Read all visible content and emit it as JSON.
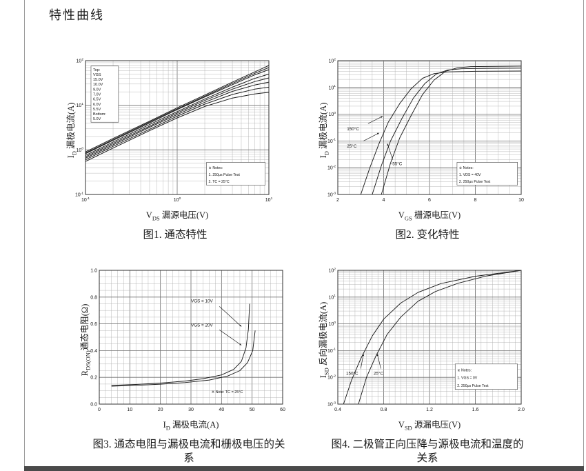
{
  "page": {
    "title": "特性曲线"
  },
  "figures": [
    {
      "caption": "图1. 通态特性",
      "x_label": {
        "sym": "V",
        "sub": "DS",
        "rest": " 漏源电压(V)"
      },
      "y_label": {
        "sym": "I",
        "sub": "D",
        "rest": " 漏极电流(A)"
      }
    },
    {
      "caption": "图2. 变化特性",
      "x_label": {
        "sym": "V",
        "sub": "GS",
        "rest": " 栅源电压(V)"
      },
      "y_label": {
        "sym": "I",
        "sub": "D",
        "rest": " 漏极电流(A)"
      }
    },
    {
      "caption": "图3. 通态电阻与漏极电流和栅极电压的关系",
      "x_label": {
        "sym": "I",
        "sub": "D",
        "rest": " 漏极电流(A)"
      },
      "y_label": {
        "sym": "R",
        "sub": "DS(ON)",
        "rest": "通态电阻(Ω)"
      }
    },
    {
      "caption": "图4. 二极管正向压降与源极电流和温度的关系",
      "x_label": {
        "sym": "V",
        "sub": "SD",
        "rest": " 源漏电压(V)"
      },
      "y_label": {
        "sym": "I",
        "sub": "SD",
        "rest": " 反向漏极电流(A)"
      }
    }
  ],
  "chart_data": [
    {
      "type": "line",
      "title": "图1. 通态特性",
      "xlabel": "VDS 漏源电压(V)",
      "ylabel": "ID 漏极电流(A)",
      "x": {
        "scale": "log",
        "min": 0.1,
        "max": 10
      },
      "y": {
        "scale": "log",
        "min": 0.1,
        "max": 100
      },
      "lw": 1.0,
      "series": [
        {
          "name": "VGS=15.0V",
          "points": [
            [
              0.1,
              0.9
            ],
            [
              0.2,
              1.8
            ],
            [
              0.5,
              4.4
            ],
            [
              1,
              8.8
            ],
            [
              2,
              17
            ],
            [
              4,
              33
            ],
            [
              7,
              56
            ],
            [
              10,
              78
            ]
          ]
        },
        {
          "name": "VGS=10.0V",
          "points": [
            [
              0.1,
              0.85
            ],
            [
              0.2,
              1.7
            ],
            [
              0.5,
              4.2
            ],
            [
              1,
              8.3
            ],
            [
              2,
              16
            ],
            [
              4,
              31
            ],
            [
              7,
              52
            ],
            [
              10,
              70
            ]
          ]
        },
        {
          "name": "VGS=9.0V",
          "points": [
            [
              0.1,
              0.82
            ],
            [
              0.2,
              1.63
            ],
            [
              0.5,
              4.0
            ],
            [
              1,
              8.0
            ],
            [
              2,
              15.3
            ],
            [
              4,
              29
            ],
            [
              7,
              48
            ],
            [
              10,
              63
            ]
          ]
        },
        {
          "name": "VGS=7.0V",
          "points": [
            [
              0.1,
              0.75
            ],
            [
              0.2,
              1.5
            ],
            [
              0.5,
              3.7
            ],
            [
              1,
              7.2
            ],
            [
              2,
              13.8
            ],
            [
              4,
              25.5
            ],
            [
              7,
              40
            ],
            [
              10,
              50
            ]
          ]
        },
        {
          "name": "VGS=6.5V",
          "points": [
            [
              0.1,
              0.7
            ],
            [
              0.2,
              1.4
            ],
            [
              0.5,
              3.4
            ],
            [
              1,
              6.7
            ],
            [
              2,
              12.8
            ],
            [
              4,
              23
            ],
            [
              7,
              34
            ],
            [
              10,
              41
            ]
          ]
        },
        {
          "name": "VGS=6.0V",
          "points": [
            [
              0.1,
              0.65
            ],
            [
              0.2,
              1.3
            ],
            [
              0.5,
              3.2
            ],
            [
              1,
              6.2
            ],
            [
              2,
              11.7
            ],
            [
              4,
              20.5
            ],
            [
              7,
              28.5
            ],
            [
              10,
              33
            ]
          ]
        },
        {
          "name": "VGS=5.5V",
          "points": [
            [
              0.1,
              0.6
            ],
            [
              0.2,
              1.2
            ],
            [
              0.5,
              2.9
            ],
            [
              1,
              5.7
            ],
            [
              2,
              10.6
            ],
            [
              4,
              17.5
            ],
            [
              7,
              23
            ],
            [
              10,
              25.5
            ]
          ]
        },
        {
          "name": "VGS=5.0V",
          "points": [
            [
              0.1,
              0.55
            ],
            [
              0.2,
              1.1
            ],
            [
              0.5,
              2.7
            ],
            [
              1,
              5.2
            ],
            [
              2,
              9.4
            ],
            [
              4,
              14.5
            ],
            [
              7,
              18
            ],
            [
              10,
              19.5
            ]
          ]
        }
      ],
      "boxes": [
        {
          "lines": [
            "Top:",
            "VGS",
            "15.0V",
            "10.0V",
            "9.0V",
            "7.0V",
            "6.5V",
            "6.0V",
            "5.5V",
            "Bottom:",
            "5.0V"
          ],
          "at": [
            0.03,
            0.04
          ],
          "w": 0.15,
          "h": 0.42,
          "border": true,
          "fs": 5.5
        },
        {
          "lines": [
            "※ Notes:",
            "1. 250μs Pulse Test",
            "2. TC = 25°C"
          ],
          "at": [
            0.66,
            0.76
          ],
          "w": 0.32,
          "h": 0.17,
          "border": true,
          "fs": 5.2
        }
      ],
      "annotations": []
    },
    {
      "type": "line",
      "title": "图2. 变化特性",
      "xlabel": "VGS 栅源电压(V)",
      "ylabel": "ID 漏极电流(A)",
      "x": {
        "scale": "linear",
        "min": 2,
        "max": 10,
        "ticks": [
          2,
          4,
          6,
          8,
          10
        ],
        "labels": [
          "2",
          "4",
          "6",
          "8",
          "10"
        ],
        "minor": 0.5
      },
      "y": {
        "scale": "log",
        "min": 0.001,
        "max": 100
      },
      "series": [
        {
          "name": "150°C",
          "points": [
            [
              3.0,
              0.001
            ],
            [
              3.4,
              0.01
            ],
            [
              3.8,
              0.08
            ],
            [
              4.2,
              0.5
            ],
            [
              4.7,
              2.5
            ],
            [
              5.2,
              9
            ],
            [
              5.7,
              22
            ],
            [
              6.2,
              33
            ],
            [
              6.8,
              38
            ],
            [
              8,
              40
            ],
            [
              10,
              41
            ]
          ]
        },
        {
          "name": "25°C",
          "points": [
            [
              3.5,
              0.001
            ],
            [
              3.9,
              0.012
            ],
            [
              4.3,
              0.1
            ],
            [
              4.8,
              0.7
            ],
            [
              5.3,
              4
            ],
            [
              5.8,
              14
            ],
            [
              6.3,
              32
            ],
            [
              6.8,
              45
            ],
            [
              7.4,
              50
            ],
            [
              8.5,
              52
            ],
            [
              10,
              53
            ]
          ]
        },
        {
          "name": "-55°C",
          "points": [
            [
              3.9,
              0.001
            ],
            [
              4.3,
              0.015
            ],
            [
              4.7,
              0.13
            ],
            [
              5.2,
              0.9
            ],
            [
              5.7,
              5.5
            ],
            [
              6.2,
              19
            ],
            [
              6.7,
              40
            ],
            [
              7.2,
              54
            ],
            [
              7.8,
              60
            ],
            [
              10,
              63
            ]
          ]
        }
      ],
      "boxes": [
        {
          "lines": [
            "※ Notes:",
            "1. VDS = 40V",
            "2. 250μs Pulse Test"
          ],
          "at": [
            0.65,
            0.76
          ],
          "w": 0.33,
          "h": 0.17,
          "border": true,
          "fs": 5.2
        }
      ],
      "annotations": [
        {
          "text": "150°C",
          "at": [
            0.05,
            0.52
          ],
          "arrow": {
            "from": [
              0.165,
              0.47
            ],
            "to": [
              0.245,
              0.415
            ]
          }
        },
        {
          "text": "25°C",
          "at": [
            0.05,
            0.65
          ],
          "arrow": {
            "from": [
              0.14,
              0.6
            ],
            "to": [
              0.225,
              0.54
            ]
          }
        },
        {
          "text": "-55°C",
          "at": [
            0.29,
            0.78
          ],
          "arrow": {
            "from": [
              0.3,
              0.74
            ],
            "to": [
              0.27,
              0.62
            ]
          }
        }
      ]
    },
    {
      "type": "line",
      "title": "图3. 通态电阻与漏极电流和栅极电压的关系",
      "xlabel": "ID 漏极电流(A)",
      "ylabel": "RDS(ON)通态电阻(Ω)",
      "x": {
        "scale": "linear",
        "min": 0,
        "max": 60,
        "ticks": [
          0,
          10,
          20,
          30,
          40,
          50,
          60
        ],
        "labels": [
          "0",
          "10",
          "20",
          "30",
          "40",
          "50",
          "60"
        ],
        "minor": 2
      },
      "y": {
        "scale": "linear",
        "min": 0,
        "max": 1.0,
        "ticks": [
          0,
          0.2,
          0.4,
          0.6,
          0.8,
          1.0
        ],
        "labels": [
          "0.0",
          "0.2",
          "0.4",
          "0.6",
          "0.8",
          "1.0"
        ],
        "minor": 0.05
      },
      "series": [
        {
          "name": "VGS = 10V",
          "points": [
            [
              4,
              0.14
            ],
            [
              12,
              0.147
            ],
            [
              20,
              0.157
            ],
            [
              28,
              0.172
            ],
            [
              34,
              0.19
            ],
            [
              40,
              0.218
            ],
            [
              44,
              0.26
            ],
            [
              46.5,
              0.32
            ],
            [
              48,
              0.42
            ],
            [
              48.8,
              0.56
            ],
            [
              49.2,
              0.75
            ]
          ]
        },
        {
          "name": "VGS = 20V",
          "points": [
            [
              4,
              0.134
            ],
            [
              12,
              0.14
            ],
            [
              20,
              0.149
            ],
            [
              28,
              0.161
            ],
            [
              36,
              0.18
            ],
            [
              42,
              0.21
            ],
            [
              46,
              0.25
            ],
            [
              48.5,
              0.31
            ],
            [
              50.2,
              0.4
            ],
            [
              51,
              0.55
            ]
          ]
        }
      ],
      "boxes": [
        {
          "lines": [
            "※ Note: TC = 25°C"
          ],
          "at": [
            0.6,
            0.84
          ],
          "w": 0.38,
          "h": 0.1,
          "border": false,
          "fs": 5.4
        }
      ],
      "annotations": [
        {
          "text": "VGS = 10V",
          "at": [
            0.5,
            0.24
          ],
          "arrow": {
            "from": [
              0.655,
              0.27
            ],
            "to": [
              0.775,
              0.42
            ]
          }
        },
        {
          "text": "VGS = 20V",
          "at": [
            0.5,
            0.42
          ],
          "arrow": {
            "from": [
              0.655,
              0.445
            ],
            "to": [
              0.775,
              0.56
            ]
          }
        }
      ]
    },
    {
      "type": "line",
      "title": "图4. 二极管正向压降与源极电流和温度的关系",
      "xlabel": "VSD 源漏电压(V)",
      "ylabel": "ISD 反向漏极电流(A)",
      "x": {
        "scale": "linear",
        "min": 0.4,
        "max": 2.0,
        "ticks": [
          0.4,
          0.8,
          1.2,
          1.6,
          2.0
        ],
        "labels": [
          "0.4",
          "0.8",
          "1.2",
          "1.6",
          "2.0"
        ],
        "minor": 0.05
      },
      "y": {
        "scale": "log",
        "min": 0.001,
        "max": 100
      },
      "series": [
        {
          "name": "150°C",
          "points": [
            [
              0.45,
              0.001
            ],
            [
              0.52,
              0.008
            ],
            [
              0.6,
              0.05
            ],
            [
              0.7,
              0.35
            ],
            [
              0.8,
              1.5
            ],
            [
              0.95,
              6
            ],
            [
              1.1,
              15
            ],
            [
              1.3,
              32
            ],
            [
              1.6,
              60
            ],
            [
              2.0,
              100
            ]
          ]
        },
        {
          "name": "25°C",
          "points": [
            [
              0.58,
              0.001
            ],
            [
              0.65,
              0.01
            ],
            [
              0.73,
              0.06
            ],
            [
              0.83,
              0.4
            ],
            [
              0.95,
              1.8
            ],
            [
              1.1,
              7
            ],
            [
              1.25,
              16
            ],
            [
              1.45,
              33
            ],
            [
              1.7,
              62
            ],
            [
              2.0,
              100
            ]
          ]
        }
      ],
      "boxes": [
        {
          "lines": [
            "※ Notes:",
            "1. VGS = 0V",
            "2. 250μs Pulse Test"
          ],
          "at": [
            0.64,
            0.7
          ],
          "w": 0.34,
          "h": 0.19,
          "border": true,
          "fs": 5.2
        }
      ],
      "annotations": [
        {
          "text": "150°C",
          "at": [
            0.045,
            0.78
          ],
          "arrow": {
            "from": [
              0.125,
              0.735
            ],
            "to": [
              0.14,
              0.625
            ]
          }
        },
        {
          "text": "25°C",
          "at": [
            0.195,
            0.78
          ],
          "arrow": {
            "from": [
              0.235,
              0.735
            ],
            "to": [
              0.215,
              0.625
            ]
          }
        }
      ]
    }
  ]
}
